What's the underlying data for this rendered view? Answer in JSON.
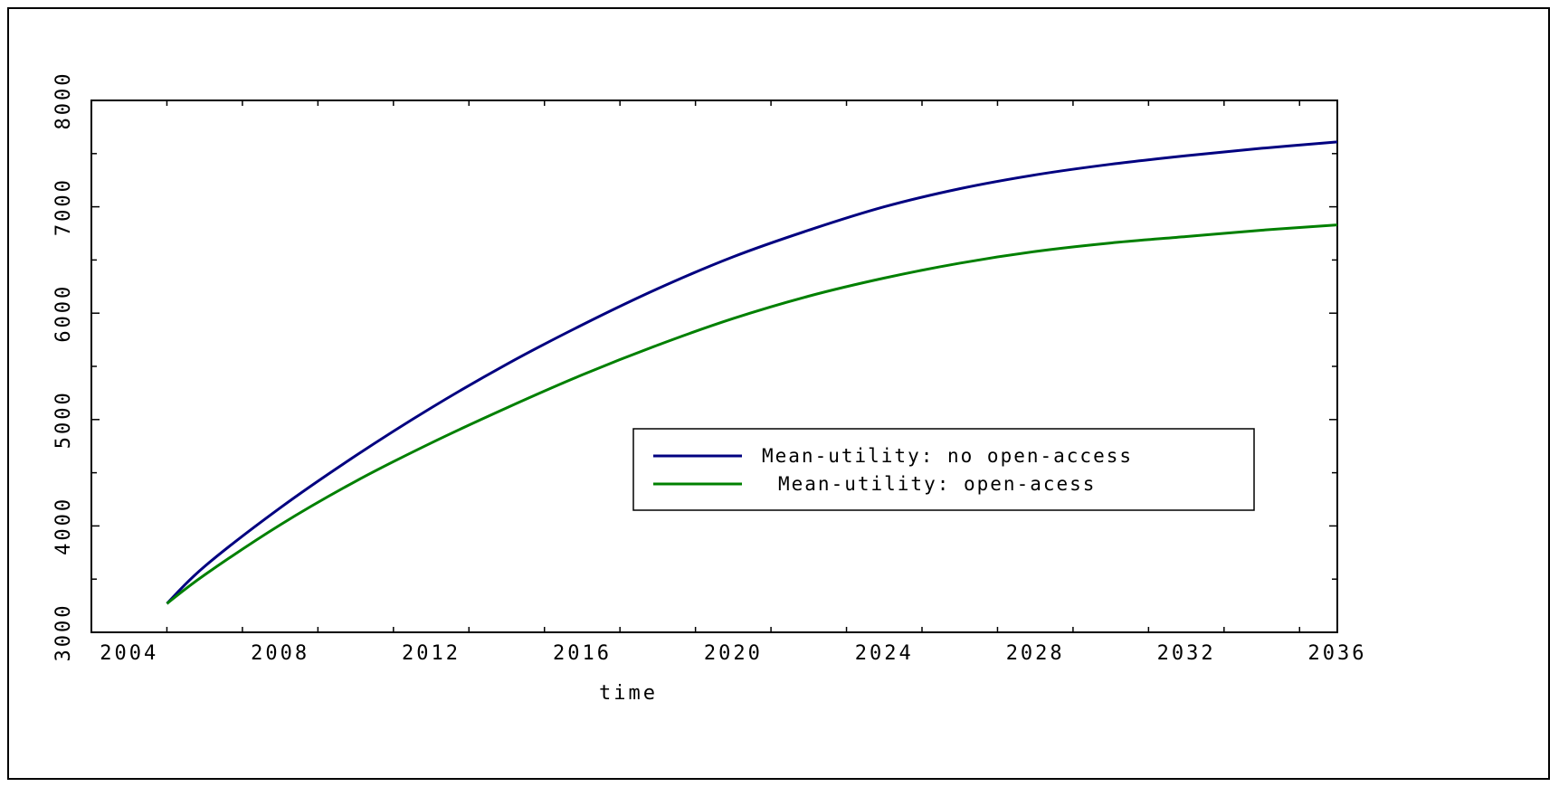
{
  "chart_data": {
    "type": "line",
    "title": "",
    "xlabel": "time",
    "ylabel": "",
    "xlim": [
      2003,
      2036
    ],
    "ylim": [
      3000,
      8000
    ],
    "xticks": [
      2004,
      2008,
      2012,
      2016,
      2020,
      2024,
      2028,
      2032,
      2036
    ],
    "yticks": [
      3000,
      4000,
      5000,
      6000,
      7000,
      8000
    ],
    "x_tick_labels": [
      "2004",
      "2008",
      "2012",
      "2016",
      "2020",
      "2024",
      "2028",
      "2032",
      "2036"
    ],
    "y_tick_labels": [
      "3000",
      "4000",
      "5000",
      "6000",
      "7000",
      "8000"
    ],
    "grid": false,
    "legend_position": "center-right",
    "x": [
      2005,
      2006,
      2008,
      2010,
      2012,
      2014,
      2016,
      2018,
      2020,
      2022,
      2024,
      2026,
      2028,
      2030,
      2032,
      2034,
      2036
    ],
    "series": [
      {
        "name": "Mean-utility: no open-access",
        "color": "#000080",
        "values": [
          3270,
          3620,
          4170,
          4660,
          5110,
          5520,
          5890,
          6230,
          6530,
          6780,
          7000,
          7170,
          7300,
          7400,
          7480,
          7550,
          7610
        ]
      },
      {
        "name": "Mean-utility: open-acess",
        "color": "#008000",
        "values": [
          3270,
          3540,
          4010,
          4420,
          4780,
          5110,
          5420,
          5700,
          5950,
          6160,
          6330,
          6470,
          6580,
          6660,
          6720,
          6780,
          6830
        ]
      }
    ]
  }
}
